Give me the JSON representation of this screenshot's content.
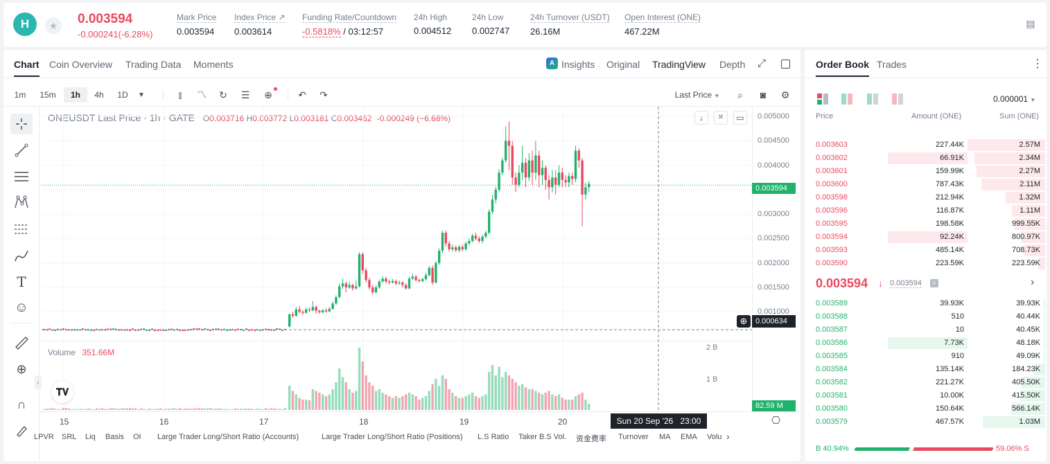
{
  "header": {
    "logo": "H",
    "price": "0.003594",
    "change": "-0.000241(-6.28%)",
    "stats": [
      {
        "label": "Mark Price",
        "value": "0.003594"
      },
      {
        "label": "Index Price ↗",
        "value": "0.003614"
      },
      {
        "label": "Funding Rate/Countdown",
        "value_red": "-0.5818%",
        "value": "/ 03:12:57"
      },
      {
        "label": "24h High",
        "value": "0.004512"
      },
      {
        "label": "24h Low",
        "value": "0.002747"
      },
      {
        "label": "24h Turnover (USDT)",
        "value": "26.16M"
      },
      {
        "label": "Open Interest (ONE)",
        "value": "467.22M"
      }
    ]
  },
  "chart_tabs": [
    "Chart",
    "Coin Overview",
    "Trading Data",
    "Moments"
  ],
  "view_tabs": {
    "insights": "Insights",
    "original": "Original",
    "tradingview": "TradingView",
    "depth": "Depth"
  },
  "timeframes": [
    "1m",
    "15m",
    "1h",
    "4h",
    "1D"
  ],
  "active_timeframe": "1h",
  "price_type": "Last Price",
  "legend": {
    "symbol": "ONEUSDT Last Price · 1h · GATE",
    "o_label": "O",
    "o": "0.003716",
    "h_label": "H",
    "h": "0.003772",
    "l_label": "L",
    "l": "0.003181",
    "c_label": "C",
    "c": "0.003462",
    "chg": "-0.000249 (−6.68%)"
  },
  "volume_legend": {
    "label": "Volume",
    "value": "351.66M"
  },
  "price_axis": [
    "0.005000",
    "0.004500",
    "0.004000",
    "0.003500",
    "0.003000",
    "0.002500",
    "0.002000",
    "0.001500",
    "0.001000"
  ],
  "volume_axis": [
    "2 B",
    "1 B"
  ],
  "last_price_tag": "0.003594",
  "crosshair_tag": "0.000634",
  "volume_tag": "82.59 M",
  "x_axis": [
    "15",
    "16",
    "17",
    "18",
    "19",
    "20"
  ],
  "crosshair_time": "Sun 20 Sep '26   23:00",
  "indicators": [
    "LPVR",
    "SRL",
    "Liq",
    "Basis",
    "OI",
    "Large Trader Long/Short Ratio (Accounts)",
    "Large Trader Long/Short Ratio (Positions)",
    "L.S Ratio",
    "Taker B.S Vol.",
    "资金费率",
    "Turnover",
    "MA",
    "EMA",
    "Volu"
  ],
  "colors": {
    "up": "#20b26c",
    "down": "#e84a5f",
    "up_vol": "#95dcbc",
    "down_vol": "#f2a5b0"
  },
  "chart_data": {
    "type": "candlestick",
    "symbol": "ONEUSDT",
    "interval": "1h",
    "x_labels": [
      "15",
      "16",
      "17",
      "18",
      "19",
      "20"
    ],
    "ylim": [
      0.00055,
      0.0052
    ],
    "flat_segment": {
      "from": "15",
      "to": "17",
      "price": 0.000634
    },
    "candles": [
      [
        0.0007,
        0.00095,
        0.00096,
        0.00068,
        0.7
      ],
      [
        0.00095,
        0.00092,
        0.001,
        0.00088,
        0.55
      ],
      [
        0.00092,
        0.00105,
        0.0011,
        0.0009,
        0.45
      ],
      [
        0.00105,
        0.001,
        0.00112,
        0.00097,
        0.35
      ],
      [
        0.001,
        0.00098,
        0.00104,
        0.00094,
        0.3
      ],
      [
        0.00098,
        0.00105,
        0.00108,
        0.00096,
        0.3
      ],
      [
        0.00105,
        0.00103,
        0.00109,
        0.001,
        0.28
      ],
      [
        0.00103,
        0.0011,
        0.00122,
        0.00101,
        0.6
      ],
      [
        0.0011,
        0.00102,
        0.00113,
        0.00096,
        0.55
      ],
      [
        0.00102,
        0.00099,
        0.00105,
        0.00096,
        0.5
      ],
      [
        0.00099,
        0.00103,
        0.00106,
        0.00097,
        0.45
      ],
      [
        0.00103,
        0.00101,
        0.00107,
        0.00098,
        0.4
      ],
      [
        0.00101,
        0.00106,
        0.0011,
        0.00099,
        0.45
      ],
      [
        0.00106,
        0.00117,
        0.00121,
        0.00104,
        0.6
      ],
      [
        0.00117,
        0.0013,
        0.00134,
        0.00114,
        0.8
      ],
      [
        0.0013,
        0.00152,
        0.00158,
        0.00128,
        1.2
      ],
      [
        0.00152,
        0.00158,
        0.00168,
        0.00147,
        0.95
      ],
      [
        0.00158,
        0.0015,
        0.00162,
        0.0014,
        0.8
      ],
      [
        0.0015,
        0.00155,
        0.00162,
        0.00147,
        0.6
      ],
      [
        0.00155,
        0.00148,
        0.00158,
        0.00143,
        0.5
      ],
      [
        0.00148,
        0.00152,
        0.00164,
        0.00145,
        0.55
      ],
      [
        0.00152,
        0.00218,
        0.00222,
        0.0015,
        1.8
      ],
      [
        0.00218,
        0.00185,
        0.00222,
        0.00178,
        1.4
      ],
      [
        0.00185,
        0.00165,
        0.0019,
        0.0016,
        1.0
      ],
      [
        0.00165,
        0.0015,
        0.0017,
        0.00145,
        0.8
      ],
      [
        0.0015,
        0.0014,
        0.00155,
        0.00135,
        0.7
      ],
      [
        0.0014,
        0.0015,
        0.00154,
        0.00137,
        0.55
      ],
      [
        0.0015,
        0.00162,
        0.00166,
        0.00147,
        0.6
      ],
      [
        0.00162,
        0.00168,
        0.00173,
        0.0016,
        0.5
      ],
      [
        0.00168,
        0.00162,
        0.00172,
        0.00158,
        0.45
      ],
      [
        0.00162,
        0.0016,
        0.00166,
        0.00156,
        0.4
      ],
      [
        0.0016,
        0.00163,
        0.00167,
        0.00158,
        0.35
      ],
      [
        0.00163,
        0.00158,
        0.00166,
        0.00154,
        0.4
      ],
      [
        0.00158,
        0.0016,
        0.00164,
        0.00155,
        0.35
      ],
      [
        0.0016,
        0.00155,
        0.00163,
        0.0015,
        0.4
      ],
      [
        0.00155,
        0.00148,
        0.00158,
        0.00145,
        0.45
      ],
      [
        0.00148,
        0.00168,
        0.00172,
        0.00146,
        0.5
      ],
      [
        0.00168,
        0.00172,
        0.00178,
        0.00165,
        0.45
      ],
      [
        0.00172,
        0.00165,
        0.00176,
        0.00162,
        0.4
      ],
      [
        0.00165,
        0.00163,
        0.00168,
        0.0016,
        0.3
      ],
      [
        0.00163,
        0.00167,
        0.0017,
        0.0016,
        0.35
      ],
      [
        0.00167,
        0.00175,
        0.0018,
        0.00164,
        0.4
      ],
      [
        0.00175,
        0.0019,
        0.00194,
        0.00172,
        0.55
      ],
      [
        0.0019,
        0.0016,
        0.00195,
        0.00155,
        0.75
      ],
      [
        0.0016,
        0.002,
        0.00204,
        0.00158,
        0.9
      ],
      [
        0.002,
        0.00225,
        0.0023,
        0.00196,
        0.7
      ],
      [
        0.00225,
        0.00262,
        0.00266,
        0.0022,
        1.0
      ],
      [
        0.00262,
        0.0024,
        0.00266,
        0.00233,
        0.9
      ],
      [
        0.0024,
        0.00228,
        0.00245,
        0.00223,
        0.6
      ],
      [
        0.00228,
        0.00232,
        0.00238,
        0.00223,
        0.5
      ],
      [
        0.00232,
        0.00226,
        0.00236,
        0.00222,
        0.4
      ],
      [
        0.00226,
        0.00233,
        0.00237,
        0.00222,
        0.35
      ],
      [
        0.00233,
        0.00228,
        0.00238,
        0.00224,
        0.35
      ],
      [
        0.00228,
        0.0024,
        0.00244,
        0.00225,
        0.4
      ],
      [
        0.0024,
        0.00245,
        0.0025,
        0.00236,
        0.45
      ],
      [
        0.00245,
        0.00256,
        0.0026,
        0.00242,
        0.5
      ],
      [
        0.00256,
        0.0025,
        0.00262,
        0.00246,
        0.4
      ],
      [
        0.0025,
        0.00245,
        0.00255,
        0.00241,
        0.35
      ],
      [
        0.00245,
        0.00254,
        0.00258,
        0.0024,
        0.4
      ],
      [
        0.00254,
        0.00262,
        0.00266,
        0.0025,
        0.45
      ],
      [
        0.00262,
        0.00305,
        0.0031,
        0.00258,
        1.1
      ],
      [
        0.00305,
        0.0033,
        0.0034,
        0.003,
        1.3
      ],
      [
        0.0033,
        0.0035,
        0.00356,
        0.00322,
        1.0
      ],
      [
        0.0035,
        0.00385,
        0.00392,
        0.00345,
        1.25
      ],
      [
        0.00385,
        0.0041,
        0.00415,
        0.0038,
        0.95
      ],
      [
        0.0041,
        0.0045,
        0.0048,
        0.00405,
        1.1
      ],
      [
        0.0045,
        0.0044,
        0.0049,
        0.0039,
        1.0
      ],
      [
        0.0044,
        0.00375,
        0.0045,
        0.0036,
        0.9
      ],
      [
        0.00375,
        0.0036,
        0.00385,
        0.00345,
        0.8
      ],
      [
        0.0036,
        0.00385,
        0.004,
        0.00355,
        0.7
      ],
      [
        0.00385,
        0.00405,
        0.0044,
        0.0037,
        0.75
      ],
      [
        0.00405,
        0.00375,
        0.00415,
        0.00355,
        0.65
      ],
      [
        0.00375,
        0.0041,
        0.00425,
        0.00368,
        0.6
      ],
      [
        0.0041,
        0.00385,
        0.0043,
        0.0036,
        0.6
      ],
      [
        0.00385,
        0.0042,
        0.0045,
        0.0037,
        0.55
      ],
      [
        0.0042,
        0.0038,
        0.0043,
        0.00355,
        0.5
      ],
      [
        0.0038,
        0.00395,
        0.0041,
        0.0036,
        0.45
      ],
      [
        0.00395,
        0.0037,
        0.004,
        0.0035,
        0.5
      ],
      [
        0.0037,
        0.00355,
        0.0038,
        0.0033,
        0.55
      ],
      [
        0.00355,
        0.00375,
        0.0039,
        0.00345,
        0.45
      ],
      [
        0.00375,
        0.0036,
        0.0039,
        0.0034,
        0.4
      ],
      [
        0.0036,
        0.00385,
        0.004,
        0.00355,
        0.45
      ],
      [
        0.00385,
        0.0037,
        0.00395,
        0.00355,
        0.35
      ],
      [
        0.0037,
        0.00365,
        0.0038,
        0.00355,
        0.3
      ],
      [
        0.00365,
        0.00378,
        0.00385,
        0.00355,
        0.3
      ],
      [
        0.00378,
        0.00372,
        0.00385,
        0.0036,
        0.3
      ],
      [
        0.00372,
        0.0043,
        0.0044,
        0.00365,
        0.4
      ],
      [
        0.0043,
        0.0041,
        0.00435,
        0.00395,
        0.45
      ],
      [
        0.0041,
        0.0034,
        0.00415,
        0.00275,
        0.5
      ],
      [
        0.0034,
        0.00355,
        0.00365,
        0.0033,
        0.3
      ],
      [
        0.00355,
        0.00362,
        0.00368,
        0.00345,
        0.18
      ]
    ]
  },
  "orderbook": {
    "tabs": [
      "Order Book",
      "Trades"
    ],
    "precision": "0.000001",
    "headers": [
      "Price",
      "Amount (ONE)",
      "Sum (ONE)"
    ],
    "asks": [
      {
        "price": "0.003603",
        "amount": "227.44K",
        "sum": "2.57M",
        "depth": 1.0,
        "amt_pct": 0.0
      },
      {
        "price": "0.003602",
        "amount": "66.91K",
        "sum": "2.34M",
        "depth": 0.91,
        "amt_pct": 0.74
      },
      {
        "price": "0.003601",
        "amount": "159.99K",
        "sum": "2.27M",
        "depth": 0.88,
        "amt_pct": 0.0
      },
      {
        "price": "0.003600",
        "amount": "787.43K",
        "sum": "2.11M",
        "depth": 0.82,
        "amt_pct": 0.0
      },
      {
        "price": "0.003598",
        "amount": "212.94K",
        "sum": "1.32M",
        "depth": 0.51,
        "amt_pct": 0.0
      },
      {
        "price": "0.003596",
        "amount": "116.87K",
        "sum": "1.11M",
        "depth": 0.43,
        "amt_pct": 0.0
      },
      {
        "price": "0.003595",
        "amount": "198.58K",
        "sum": "999.55K",
        "depth": 0.39,
        "amt_pct": 0.0
      },
      {
        "price": "0.003594",
        "amount": "92.24K",
        "sum": "800.97K",
        "depth": 0.31,
        "amt_pct": 0.74
      },
      {
        "price": "0.003593",
        "amount": "485.14K",
        "sum": "708.73K",
        "depth": 0.28,
        "amt_pct": 0.0
      },
      {
        "price": "0.003590",
        "amount": "223.59K",
        "sum": "223.59K",
        "depth": 0.09,
        "amt_pct": 0.0
      }
    ],
    "mid_price": "0.003594",
    "mid_arrow": "↓",
    "mark_price": "0.003594",
    "bids": [
      {
        "price": "0.003589",
        "amount": "39.93K",
        "sum": "39.93K",
        "depth": 0.02,
        "amt_pct": 0.0
      },
      {
        "price": "0.003588",
        "amount": "510",
        "sum": "40.44K",
        "depth": 0.02,
        "amt_pct": 0.0
      },
      {
        "price": "0.003587",
        "amount": "10",
        "sum": "40.45K",
        "depth": 0.02,
        "amt_pct": 0.0
      },
      {
        "price": "0.003586",
        "amount": "7.73K",
        "sum": "48.18K",
        "depth": 0.02,
        "amt_pct": 0.74
      },
      {
        "price": "0.003585",
        "amount": "910",
        "sum": "49.09K",
        "depth": 0.02,
        "amt_pct": 0.0
      },
      {
        "price": "0.003584",
        "amount": "135.14K",
        "sum": "184.23K",
        "depth": 0.14,
        "amt_pct": 0.0
      },
      {
        "price": "0.003582",
        "amount": "221.27K",
        "sum": "405.50K",
        "depth": 0.31,
        "amt_pct": 0.0
      },
      {
        "price": "0.003581",
        "amount": "10.00K",
        "sum": "415.50K",
        "depth": 0.32,
        "amt_pct": 0.0
      },
      {
        "price": "0.003580",
        "amount": "150.64K",
        "sum": "566.14K",
        "depth": 0.44,
        "amt_pct": 0.0
      },
      {
        "price": "0.003579",
        "amount": "467.57K",
        "sum": "1.03M",
        "depth": 0.8,
        "amt_pct": 0.0
      }
    ],
    "ratio": {
      "buy_label": "B",
      "buy": "40.94%",
      "sell": "59.06%",
      "sell_label": "S",
      "buy_frac": 0.4094
    }
  }
}
